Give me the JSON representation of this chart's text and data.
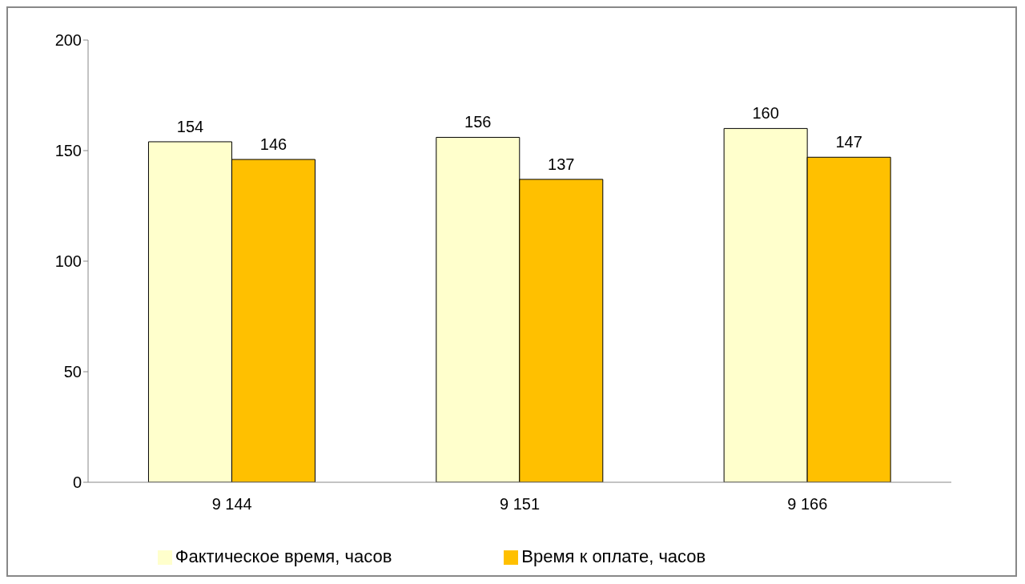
{
  "chart_data": {
    "type": "bar",
    "categories": [
      "9 144",
      "9 151",
      "9 166"
    ],
    "series": [
      {
        "name": "Фактическое время, часов",
        "color": "#ffffcc",
        "values": [
          154,
          156,
          160
        ]
      },
      {
        "name": "Время к оплате, часов",
        "color": "#ffc000",
        "values": [
          146,
          137,
          147
        ]
      }
    ],
    "ylim": [
      0,
      200
    ],
    "yticks": [
      0,
      50,
      100,
      150,
      200
    ],
    "grid": false,
    "legend": "bottom",
    "data_labels": true
  }
}
